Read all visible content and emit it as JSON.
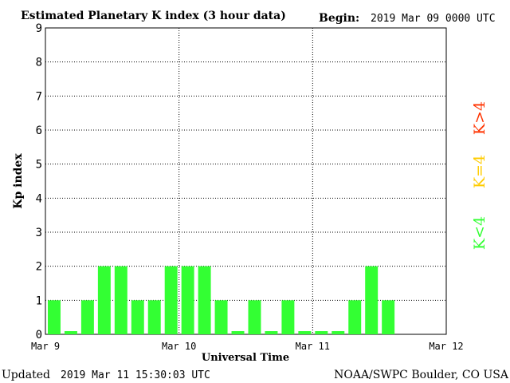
{
  "header": {
    "title": "Estimated Planetary K index (3 hour data)",
    "begin_label": "Begin:",
    "begin_value": "2019 Mar 09 0000 UTC"
  },
  "footer": {
    "updated_label": "Updated",
    "updated_value": "2019 Mar 11 15:30:03 UTC",
    "source": "NOAA/SWPC Boulder, CO USA"
  },
  "legend": {
    "high": "K>4",
    "equal": "K=4",
    "low": "K<4",
    "colors": {
      "high": "#ff3300",
      "equal": "#ffcc00",
      "low": "#33ff33"
    }
  },
  "chart_data": {
    "type": "bar",
    "title": "Estimated Planetary K index (3 hour data)",
    "xlabel": "Universal Time",
    "ylabel": "Kp index",
    "ylim": [
      0,
      9
    ],
    "yticks": [
      "0",
      "1",
      "2",
      "3",
      "4",
      "5",
      "6",
      "7",
      "8",
      "9"
    ],
    "xticks": [
      "Mar 9",
      "Mar 10",
      "Mar 11",
      "Mar 12"
    ],
    "interval_hours": 3,
    "grid": "dotted",
    "bar_color": "#33ff33",
    "values": [
      1,
      0,
      1,
      2,
      2,
      1,
      1,
      2,
      2,
      2,
      1,
      0,
      1,
      0,
      1,
      0,
      0,
      0,
      1,
      2,
      1
    ]
  }
}
